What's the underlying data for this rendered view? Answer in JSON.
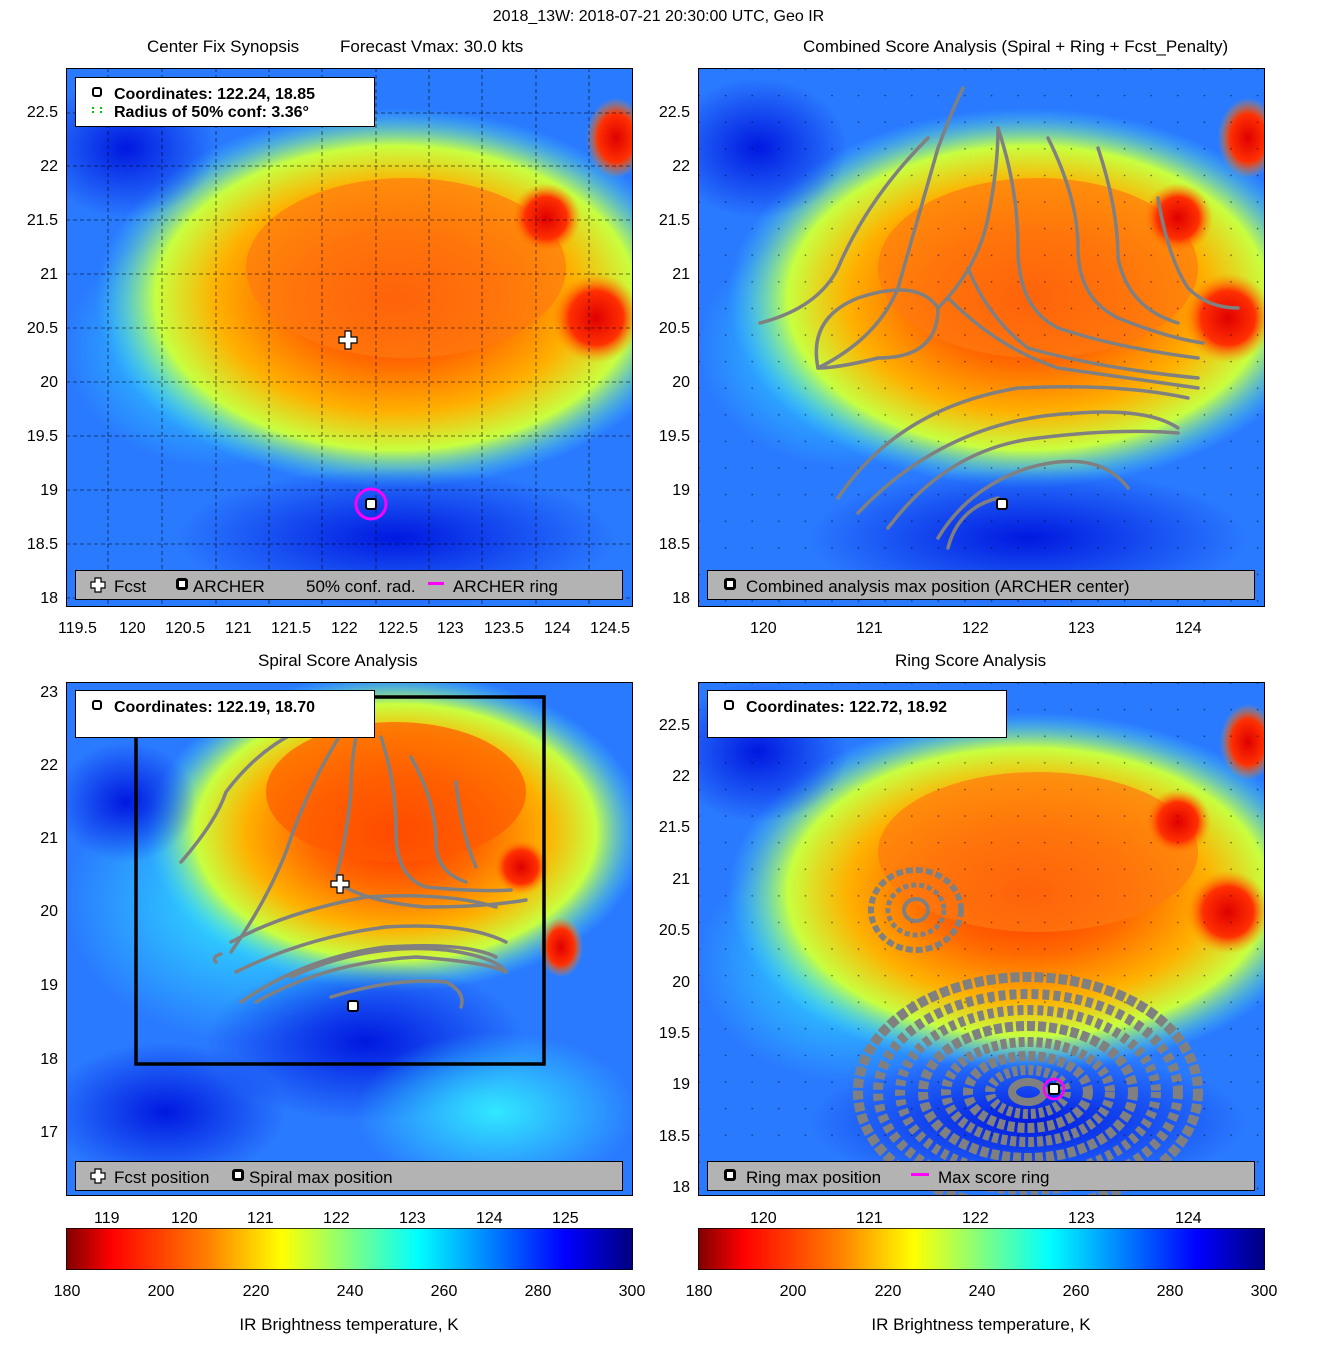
{
  "main_title": "2018_13W: 2018-07-21 20:30:00 UTC, Geo IR",
  "panels": {
    "tl": {
      "title_left": "Center Fix Synopsis",
      "title_right": "Forecast Vmax: 30.0 kts",
      "info_line1": "Coordinates: 122.24, 18.85",
      "info_line2": "Radius of 50% conf: 3.36°",
      "legend": [
        "Fcst",
        "ARCHER",
        "50% conf. rad.",
        "ARCHER ring"
      ],
      "xticks": [
        "119.5",
        "120",
        "120.5",
        "121",
        "121.5",
        "122",
        "122.5",
        "123",
        "123.5",
        "124",
        "124.5"
      ],
      "yticks": [
        "22.5",
        "22",
        "21.5",
        "21",
        "20.5",
        "20",
        "19.5",
        "19",
        "18.5",
        "18"
      ]
    },
    "tr": {
      "title": "Combined Score Analysis (Spiral + Ring + Fcst_Penalty)",
      "legend": [
        "Combined analysis max position (ARCHER center)"
      ],
      "xticks": [
        "120",
        "121",
        "122",
        "123",
        "124"
      ],
      "yticks": [
        "22.5",
        "22",
        "21.5",
        "21",
        "20.5",
        "20",
        "19.5",
        "19",
        "18.5",
        "18"
      ]
    },
    "bl": {
      "title": "Spiral Score Analysis",
      "info_line1": "Coordinates: 122.19, 18.70",
      "legend": [
        "Fcst position",
        "Spiral max position"
      ],
      "xticks": [
        "119",
        "120",
        "121",
        "122",
        "123",
        "124",
        "125"
      ],
      "yticks": [
        "23",
        "22",
        "21",
        "20",
        "19",
        "18",
        "17"
      ]
    },
    "br": {
      "title": "Ring Score Analysis",
      "info_line1": "Coordinates: 122.72, 18.92",
      "legend": [
        "Ring max position",
        "Max score ring"
      ],
      "xticks": [
        "120",
        "121",
        "122",
        "123",
        "124"
      ],
      "yticks": [
        "22.5",
        "22",
        "21.5",
        "21",
        "20.5",
        "20",
        "19.5",
        "19",
        "18.5",
        "18"
      ]
    }
  },
  "colorbar": {
    "ticks": [
      "180",
      "200",
      "220",
      "240",
      "260",
      "280",
      "300"
    ],
    "label": "IR Brightness temperature, K",
    "colors": [
      "#7f0000",
      "#ff0000",
      "#ff8000",
      "#ffff00",
      "#80ff80",
      "#00ffff",
      "#0080ff",
      "#0000ff",
      "#00007f"
    ]
  },
  "colors": {
    "archer_ring": "#ff00ff",
    "contour": "#808080",
    "conf_radius": "#00cc00"
  }
}
